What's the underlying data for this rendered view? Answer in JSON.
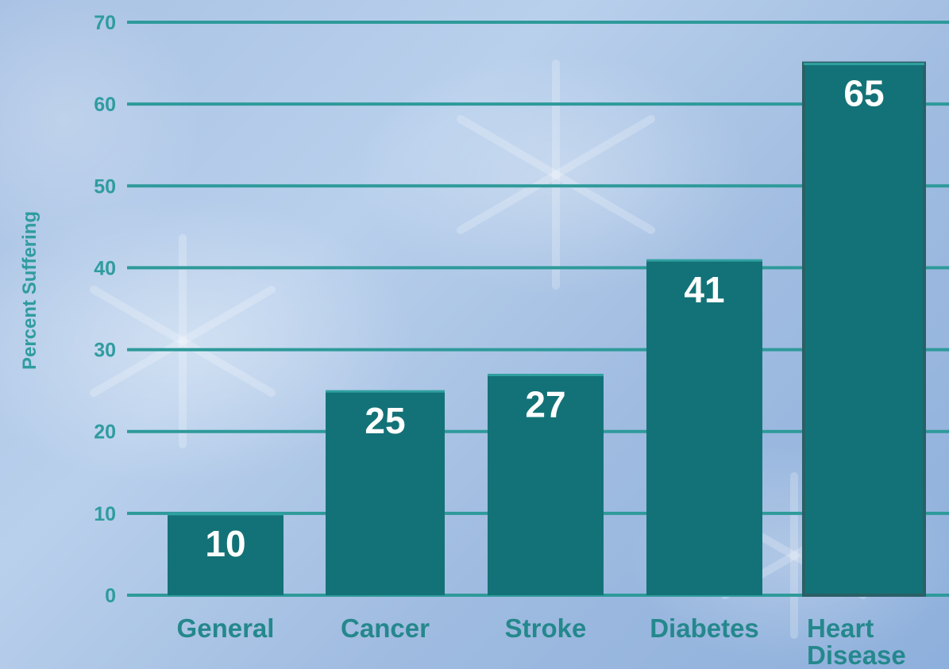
{
  "chart_data": {
    "type": "bar",
    "title": "",
    "xlabel": "",
    "ylabel": "Percent Suffering",
    "ylim": [
      0,
      70
    ],
    "yticks": [
      0,
      10,
      20,
      30,
      40,
      50,
      60,
      70
    ],
    "categories": [
      "General",
      "Cancer",
      "Stroke",
      "Diabetes",
      "Heart Disease"
    ],
    "values": [
      10,
      25,
      27,
      41,
      65
    ],
    "grid": true,
    "colors": {
      "bar": "#137277",
      "grid": "#2e9a9a",
      "tick_label": "#2f9c9f",
      "axis_label": "#2f9c9f",
      "category_label": "#24888c",
      "value_label": "#ffffff"
    }
  }
}
